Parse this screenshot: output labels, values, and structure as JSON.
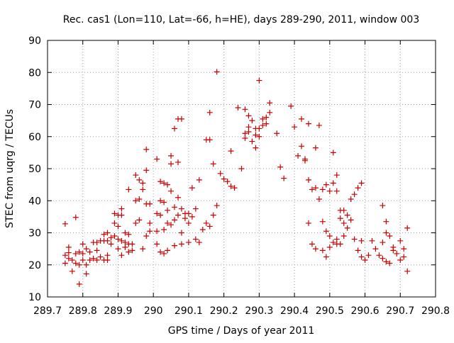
{
  "chart_data": {
    "type": "scatter",
    "title": "Rec. cas1 (Lon=110, Lat=-66, h=HE), days 289-290, 2011, window 003",
    "xlabel": "GPS time / Days of year 2011",
    "ylabel": "STEC from uqrg / TECUs",
    "xlim": [
      289.7,
      290.8
    ],
    "ylim": [
      10,
      90
    ],
    "xticks": [
      "289.7",
      "289.8",
      "289.9",
      "290",
      "290.1",
      "290.2",
      "290.3",
      "290.4",
      "290.5",
      "290.6",
      "290.7",
      "290.8"
    ],
    "yticks": [
      "10",
      "20",
      "30",
      "40",
      "50",
      "60",
      "70",
      "80",
      "90"
    ],
    "grid": true,
    "marker": "plus",
    "color": "#cc0000",
    "points": [
      [
        289.75,
        32.8
      ],
      [
        289.75,
        23
      ],
      [
        289.75,
        20.5
      ],
      [
        289.76,
        25.5
      ],
      [
        289.76,
        23.8
      ],
      [
        289.76,
        22
      ],
      [
        289.77,
        21.5
      ],
      [
        289.77,
        18
      ],
      [
        289.78,
        23.5
      ],
      [
        289.78,
        20.5
      ],
      [
        289.78,
        34.8
      ],
      [
        289.79,
        14
      ],
      [
        289.79,
        20
      ],
      [
        289.79,
        24
      ],
      [
        289.8,
        26.5
      ],
      [
        289.8,
        23.5
      ],
      [
        289.8,
        21.5
      ],
      [
        289.81,
        25
      ],
      [
        289.81,
        20
      ],
      [
        289.81,
        17.2
      ],
      [
        289.82,
        24
      ],
      [
        289.82,
        21.5
      ],
      [
        289.83,
        27
      ],
      [
        289.83,
        22
      ],
      [
        289.84,
        27
      ],
      [
        289.84,
        24.5
      ],
      [
        289.84,
        21.5
      ],
      [
        289.85,
        27.5
      ],
      [
        289.85,
        22.5
      ],
      [
        289.86,
        29.5
      ],
      [
        289.86,
        27.5
      ],
      [
        289.86,
        21.5
      ],
      [
        289.87,
        30
      ],
      [
        289.87,
        27.5
      ],
      [
        289.87,
        23
      ],
      [
        289.87,
        21.5
      ],
      [
        289.88,
        28.5
      ],
      [
        289.88,
        26.5
      ],
      [
        289.89,
        36
      ],
      [
        289.89,
        33
      ],
      [
        289.89,
        29
      ],
      [
        289.9,
        35.5
      ],
      [
        289.9,
        32
      ],
      [
        289.9,
        28
      ],
      [
        289.9,
        25
      ],
      [
        289.91,
        37.5
      ],
      [
        289.91,
        35.5
      ],
      [
        289.91,
        27.5
      ],
      [
        289.91,
        23
      ],
      [
        289.92,
        30
      ],
      [
        289.92,
        27
      ],
      [
        289.92,
        25.5
      ],
      [
        289.93,
        43.5
      ],
      [
        289.93,
        29.5
      ],
      [
        289.93,
        26.5
      ],
      [
        289.93,
        24
      ],
      [
        289.94,
        26.5
      ],
      [
        289.94,
        24.5
      ],
      [
        289.95,
        48
      ],
      [
        289.95,
        40
      ],
      [
        289.95,
        33
      ],
      [
        289.96,
        46.5
      ],
      [
        289.96,
        40.5
      ],
      [
        289.96,
        34
      ],
      [
        289.97,
        45.5
      ],
      [
        289.97,
        43.5
      ],
      [
        289.97,
        25
      ],
      [
        289.98,
        56
      ],
      [
        289.98,
        49.5
      ],
      [
        289.98,
        39
      ],
      [
        289.98,
        29
      ],
      [
        289.99,
        39
      ],
      [
        289.99,
        33
      ],
      [
        289.99,
        30.5
      ],
      [
        290.01,
        53
      ],
      [
        290.01,
        36
      ],
      [
        290.01,
        30.5
      ],
      [
        290.01,
        26.5
      ],
      [
        290.02,
        46
      ],
      [
        290.02,
        40
      ],
      [
        290.02,
        35.5
      ],
      [
        290.02,
        24
      ],
      [
        290.03,
        45.5
      ],
      [
        290.03,
        39.5
      ],
      [
        290.03,
        31
      ],
      [
        290.03,
        23.5
      ],
      [
        290.04,
        45
      ],
      [
        290.04,
        37
      ],
      [
        290.04,
        33
      ],
      [
        290.04,
        24.5
      ],
      [
        290.05,
        54
      ],
      [
        290.05,
        51.5
      ],
      [
        290.05,
        43
      ],
      [
        290.05,
        32.5
      ],
      [
        290.06,
        62.5
      ],
      [
        290.06,
        38
      ],
      [
        290.06,
        34
      ],
      [
        290.06,
        26
      ],
      [
        290.07,
        65.5
      ],
      [
        290.07,
        52
      ],
      [
        290.07,
        41
      ],
      [
        290.07,
        35.5
      ],
      [
        290.08,
        65.5
      ],
      [
        290.08,
        37.5
      ],
      [
        290.08,
        30
      ],
      [
        290.08,
        26.5
      ],
      [
        290.09,
        36
      ],
      [
        290.09,
        34.5
      ],
      [
        290.1,
        36
      ],
      [
        290.1,
        33
      ],
      [
        290.1,
        27
      ],
      [
        290.11,
        44
      ],
      [
        290.11,
        35
      ],
      [
        290.12,
        37.5
      ],
      [
        290.12,
        28
      ],
      [
        290.13,
        46.5
      ],
      [
        290.13,
        27
      ],
      [
        290.14,
        31
      ],
      [
        290.15,
        59
      ],
      [
        290.15,
        33
      ],
      [
        290.16,
        67.5
      ],
      [
        290.16,
        59
      ],
      [
        290.16,
        32
      ],
      [
        290.17,
        51.5
      ],
      [
        290.17,
        35.5
      ],
      [
        290.18,
        80.2
      ],
      [
        290.18,
        38.5
      ],
      [
        290.19,
        48.5
      ],
      [
        290.2,
        46.8
      ],
      [
        290.21,
        46
      ],
      [
        290.22,
        55.5
      ],
      [
        290.22,
        44.5
      ],
      [
        290.23,
        44
      ],
      [
        290.24,
        69
      ],
      [
        290.25,
        50
      ],
      [
        290.26,
        68.5
      ],
      [
        290.26,
        61
      ],
      [
        290.26,
        59.5
      ],
      [
        290.27,
        66.5
      ],
      [
        290.27,
        63
      ],
      [
        290.27,
        61.5
      ],
      [
        290.28,
        65
      ],
      [
        290.28,
        58.5
      ],
      [
        290.29,
        62.5
      ],
      [
        290.29,
        60.5
      ],
      [
        290.29,
        56.5
      ],
      [
        290.3,
        77.5
      ],
      [
        290.3,
        62.5
      ],
      [
        290.3,
        60
      ],
      [
        290.31,
        65.5
      ],
      [
        290.31,
        63.5
      ],
      [
        290.32,
        66
      ],
      [
        290.32,
        64
      ],
      [
        290.33,
        70.5
      ],
      [
        290.33,
        67.5
      ],
      [
        290.35,
        61
      ],
      [
        290.36,
        50.5
      ],
      [
        290.37,
        47
      ],
      [
        290.39,
        69.5
      ],
      [
        290.4,
        63
      ],
      [
        290.41,
        54
      ],
      [
        290.42,
        65.5
      ],
      [
        290.42,
        57
      ],
      [
        290.43,
        53
      ],
      [
        290.43,
        52.5
      ],
      [
        290.44,
        64
      ],
      [
        290.44,
        46.5
      ],
      [
        290.44,
        33
      ],
      [
        290.45,
        43.5
      ],
      [
        290.45,
        26.5
      ],
      [
        290.46,
        56.5
      ],
      [
        290.46,
        44
      ],
      [
        290.46,
        25
      ],
      [
        290.47,
        63.5
      ],
      [
        290.47,
        40.5
      ],
      [
        290.48,
        43.5
      ],
      [
        290.48,
        33.5
      ],
      [
        290.48,
        24.5
      ],
      [
        290.49,
        45
      ],
      [
        290.49,
        30.5
      ],
      [
        290.49,
        22.5
      ],
      [
        290.5,
        43
      ],
      [
        290.5,
        29
      ],
      [
        290.5,
        25.5
      ],
      [
        290.51,
        55
      ],
      [
        290.51,
        45.5
      ],
      [
        290.51,
        27
      ],
      [
        290.52,
        48
      ],
      [
        290.52,
        43
      ],
      [
        290.52,
        28
      ],
      [
        290.52,
        26.5
      ],
      [
        290.53,
        37
      ],
      [
        290.53,
        34.5
      ],
      [
        290.53,
        26.5
      ],
      [
        290.54,
        37
      ],
      [
        290.54,
        33
      ],
      [
        290.54,
        29
      ],
      [
        290.55,
        35.5
      ],
      [
        290.55,
        31.5
      ],
      [
        290.56,
        40.5
      ],
      [
        290.56,
        34
      ],
      [
        290.57,
        42
      ],
      [
        290.57,
        28
      ],
      [
        290.58,
        44
      ],
      [
        290.58,
        24.5
      ],
      [
        290.59,
        45.5
      ],
      [
        290.59,
        27.5
      ],
      [
        290.59,
        22.5
      ],
      [
        290.6,
        21.5
      ],
      [
        290.61,
        23
      ],
      [
        290.62,
        27.5
      ],
      [
        290.63,
        25
      ],
      [
        290.64,
        23
      ],
      [
        290.65,
        38.5
      ],
      [
        290.65,
        27
      ],
      [
        290.65,
        22
      ],
      [
        290.66,
        33.5
      ],
      [
        290.66,
        30
      ],
      [
        290.66,
        21
      ],
      [
        290.67,
        29
      ],
      [
        290.67,
        20.5
      ],
      [
        290.68,
        25.5
      ],
      [
        290.68,
        24.5
      ],
      [
        290.69,
        23.5
      ],
      [
        290.7,
        27.5
      ],
      [
        290.7,
        21.5
      ],
      [
        290.71,
        25
      ],
      [
        290.71,
        22.5
      ],
      [
        290.72,
        31.5
      ],
      [
        290.72,
        18
      ]
    ]
  }
}
